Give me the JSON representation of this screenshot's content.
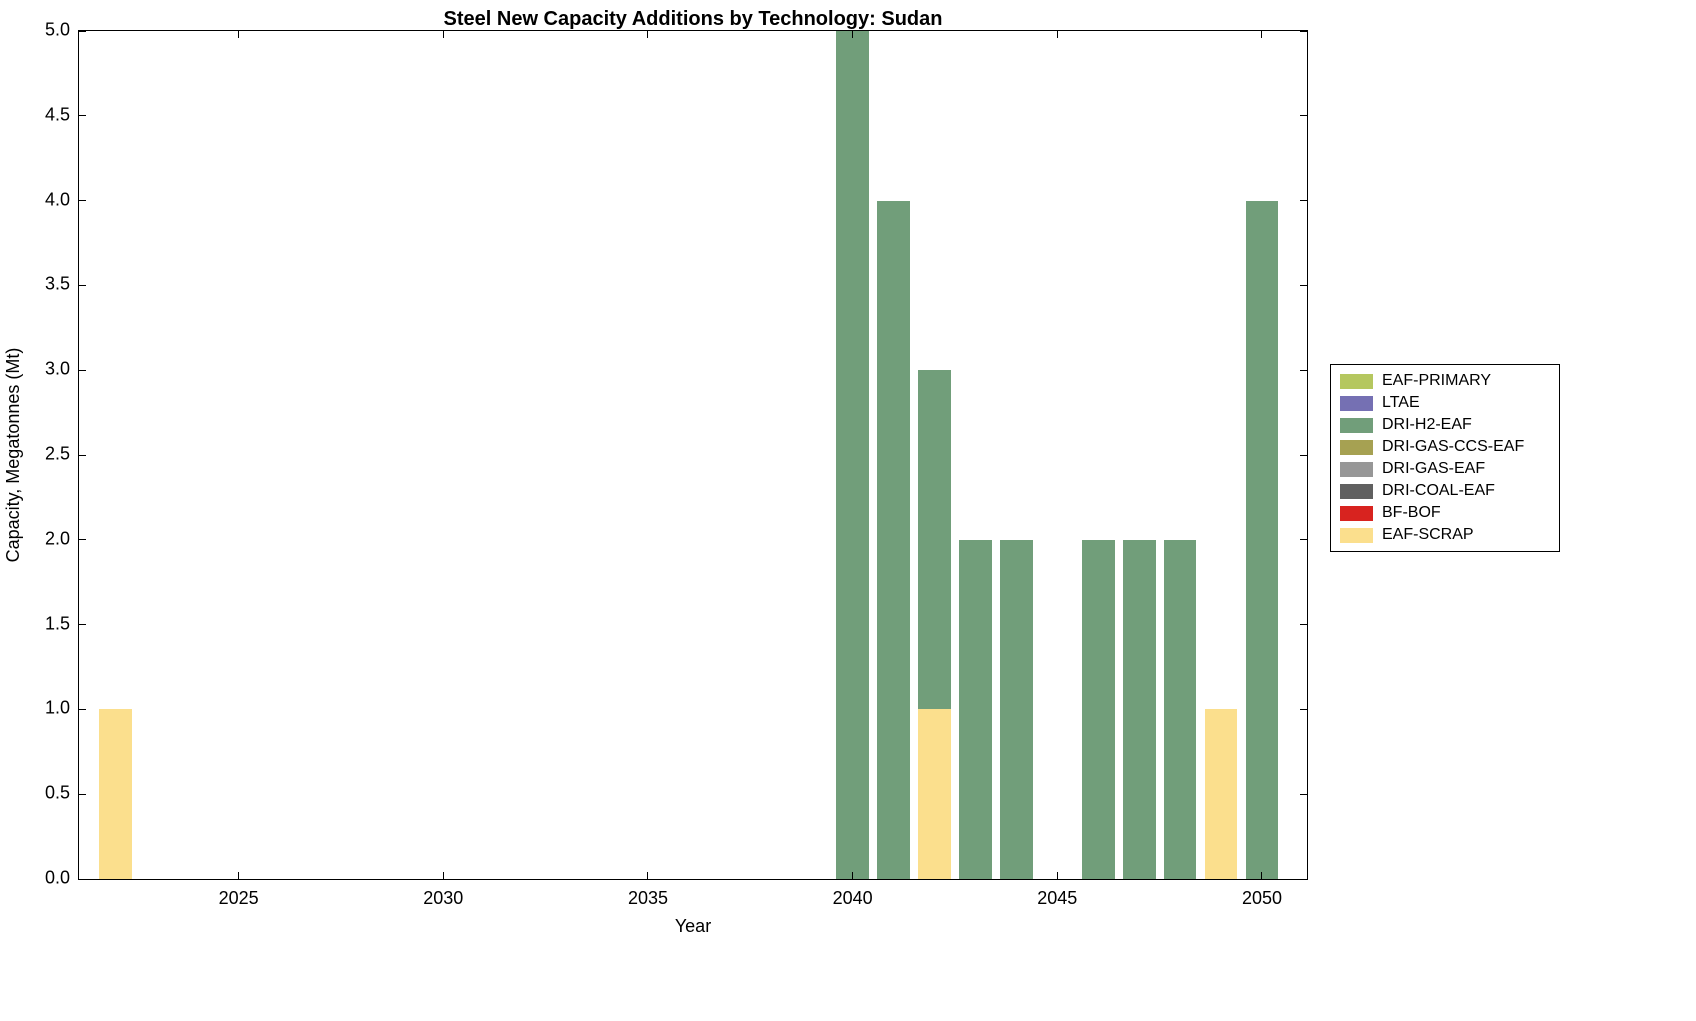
{
  "chart_data": {
    "type": "bar",
    "stacked": true,
    "title": "Steel New Capacity Additions by Technology: Sudan",
    "xlabel": "Year",
    "ylabel": "Capacity, Megatonnes (Mt)",
    "xlim": [
      2021.1,
      2051.1
    ],
    "ylim": [
      0,
      5
    ],
    "bar_width": 0.8,
    "grid": false,
    "legend_position": "right-outside",
    "categories": [
      2022,
      2023,
      2024,
      2025,
      2026,
      2027,
      2028,
      2029,
      2030,
      2031,
      2032,
      2033,
      2034,
      2035,
      2036,
      2037,
      2038,
      2039,
      2040,
      2041,
      2042,
      2043,
      2044,
      2045,
      2046,
      2047,
      2048,
      2049,
      2050
    ],
    "xticks": [
      {
        "value": 2025,
        "label": "2025"
      },
      {
        "value": 2030,
        "label": "2030"
      },
      {
        "value": 2035,
        "label": "2035"
      },
      {
        "value": 2040,
        "label": "2040"
      },
      {
        "value": 2045,
        "label": "2045"
      },
      {
        "value": 2050,
        "label": "2050"
      }
    ],
    "yticks": [
      {
        "value": 0,
        "label": "0.0"
      },
      {
        "value": 0.5,
        "label": "0.5"
      },
      {
        "value": 1,
        "label": "1.0"
      },
      {
        "value": 1.5,
        "label": "1.5"
      },
      {
        "value": 2,
        "label": "2.0"
      },
      {
        "value": 2.5,
        "label": "2.5"
      },
      {
        "value": 3,
        "label": "3.0"
      },
      {
        "value": 3.5,
        "label": "3.5"
      },
      {
        "value": 4,
        "label": "4.0"
      },
      {
        "value": 4.5,
        "label": "4.5"
      },
      {
        "value": 5,
        "label": "5.0"
      }
    ],
    "series": [
      {
        "name": "EAF-SCRAP",
        "color": "#fbdf8d",
        "values": [
          1,
          0,
          0,
          0,
          0,
          0,
          0,
          0,
          0,
          0,
          0,
          0,
          0,
          0,
          0,
          0,
          0,
          0,
          0,
          0,
          1,
          0,
          0,
          0,
          0,
          0,
          0,
          1,
          0
        ]
      },
      {
        "name": "DRI-H2-EAF",
        "color": "#719e7a",
        "values": [
          0,
          0,
          0,
          0,
          0,
          0,
          0,
          0,
          0,
          0,
          0,
          0,
          0,
          0,
          0,
          0,
          0,
          0,
          5,
          4,
          2,
          2,
          2,
          0,
          2,
          2,
          2,
          0,
          4
        ]
      }
    ],
    "legend": [
      {
        "label": "EAF-PRIMARY",
        "color": "#b5c75f"
      },
      {
        "label": "LTAE",
        "color": "#7570b3"
      },
      {
        "label": "DRI-H2-EAF",
        "color": "#719e7a"
      },
      {
        "label": "DRI-GAS-CCS-EAF",
        "color": "#a6a152"
      },
      {
        "label": "DRI-GAS-EAF",
        "color": "#979797"
      },
      {
        "label": "DRI-COAL-EAF",
        "color": "#606060"
      },
      {
        "label": "BF-BOF",
        "color": "#d8231f"
      },
      {
        "label": "EAF-SCRAP",
        "color": "#fbdf8d"
      }
    ]
  }
}
